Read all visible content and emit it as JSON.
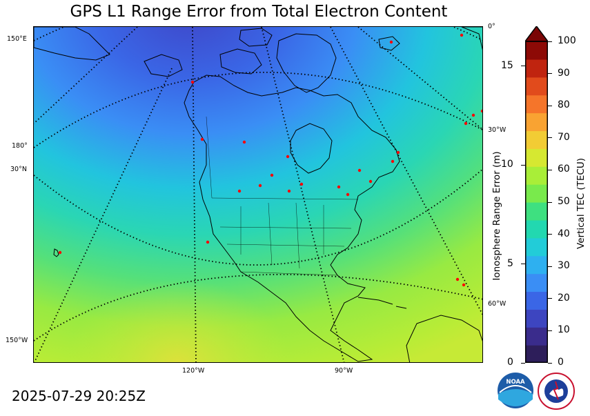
{
  "title": "GPS L1 Range Error from Total Electron Content",
  "timestamp": "2025-07-29 20:25Z",
  "map_labels": {
    "lon_0": "0°",
    "lon_30w": "30°W",
    "lon_60w": "60°W",
    "lon_90w": "90°W",
    "lon_120w": "120°W",
    "lon_150w": "150°W",
    "lon_150e": "150°E",
    "lon_180": "180°",
    "lat_30n": "30°N"
  },
  "colorbar": {
    "label_left": "Ionosphere Range Error (m)",
    "label_right": "Vertical TEC (TECU)",
    "left_ticks": [
      "0",
      "5",
      "10",
      "15"
    ],
    "right_ticks": [
      "0",
      "10",
      "20",
      "30",
      "40",
      "50",
      "60",
      "70",
      "80",
      "90",
      "100"
    ],
    "colors": [
      "#2d1e5a",
      "#3a2c8c",
      "#3d45c0",
      "#3a66e6",
      "#3a8ef5",
      "#2eb0f0",
      "#22ccd8",
      "#22d8b0",
      "#3ee080",
      "#79ea4c",
      "#a9ee38",
      "#d6e831",
      "#f2cc34",
      "#f9a332",
      "#f5752a",
      "#e14b1c",
      "#c0240f",
      "#8d0a06"
    ],
    "extend_color": "#7a0505"
  },
  "logos": {
    "noaa": "NOAA",
    "nws": "NATIONAL WEATHER SERVICE"
  }
}
